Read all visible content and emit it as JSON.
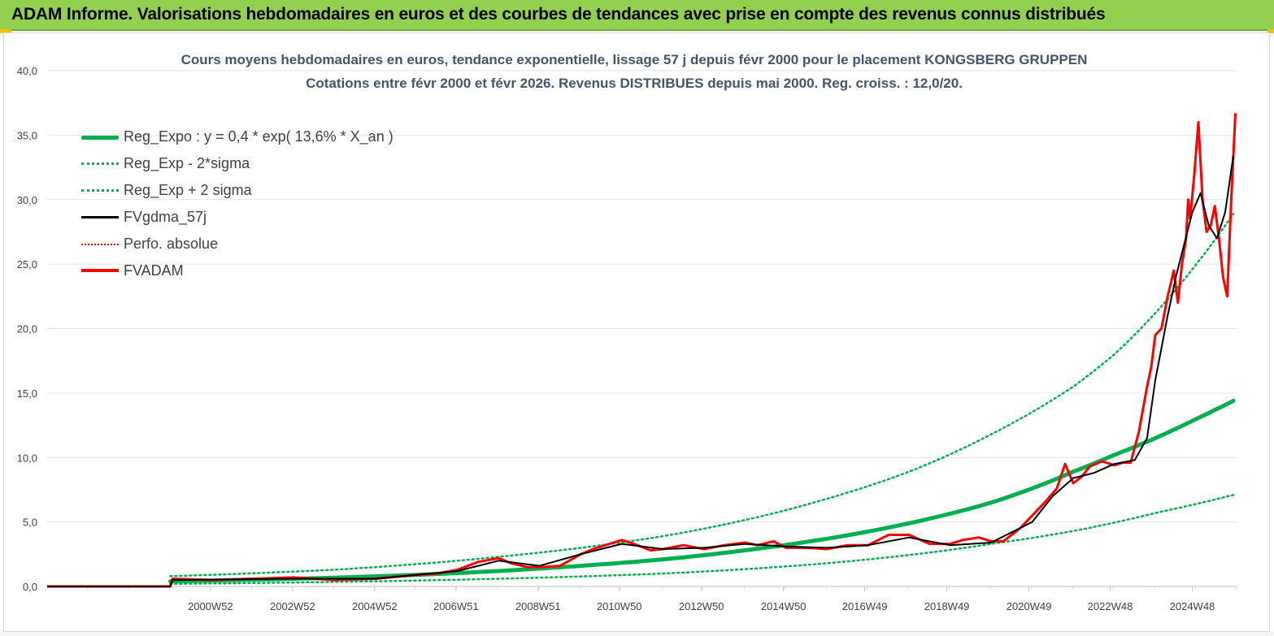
{
  "banner": {
    "title": "ADAM Informe. Valorisations hebdomadaires en euros et des courbes de tendances avec prise en compte des revenus connus distribués"
  },
  "colors": {
    "banner_bg": "#92d050",
    "reg_expo": "#00b050",
    "fvgdma": "#000000",
    "fvadam": "#ff0000",
    "title": "#44546a"
  },
  "chart_data": {
    "type": "line",
    "title_line1": "Cours moyens hebdomadaires en euros, tendance exponentielle, lissage 57 j depuis févr 2000 pour le placement KONGSBERG GRUPPEN",
    "title_line2": "Cotations entre févr 2000 et févr 2026. Revenus DISTRIBUES depuis mai 2000. Reg. croiss. : 12,0/20.",
    "ylim": [
      0,
      40
    ],
    "yticks": [
      "0,0",
      "5,0",
      "10,0",
      "15,0",
      "20,0",
      "25,0",
      "30,0",
      "35,0",
      "40,0"
    ],
    "xlim": [
      1997.0,
      2026.0
    ],
    "xticks": [
      {
        "label": "2000W52",
        "x": 2000.98
      },
      {
        "label": "2002W52",
        "x": 2002.98
      },
      {
        "label": "2004W52",
        "x": 2004.98
      },
      {
        "label": "2006W51",
        "x": 2006.96
      },
      {
        "label": "2008W51",
        "x": 2008.96
      },
      {
        "label": "2010W50",
        "x": 2010.94
      },
      {
        "label": "2012W50",
        "x": 2012.94
      },
      {
        "label": "2014W50",
        "x": 2014.94
      },
      {
        "label": "2016W49",
        "x": 2016.92
      },
      {
        "label": "2018W49",
        "x": 2018.92
      },
      {
        "label": "2020W49",
        "x": 2020.92
      },
      {
        "label": "2022W48",
        "x": 2022.9
      },
      {
        "label": "2024W48",
        "x": 2024.9
      }
    ],
    "legend": [
      {
        "label": "Reg_Expo : y = 0,4 * exp( 13,6% *  X_an )",
        "style": "thick-green"
      },
      {
        "label": "Reg_Exp - 2*sigma",
        "style": "dot-green"
      },
      {
        "label": "Reg_Exp + 2 sigma",
        "style": "dot-green"
      },
      {
        "label": "FVgdma_57j",
        "style": "black"
      },
      {
        "label": "Perfo. absolue",
        "style": "dot-red"
      },
      {
        "label": "FVADAM",
        "style": "red"
      }
    ],
    "series": [
      {
        "name": "Reg_Expo : y = 0,4 * exp( 13,6% *  X_an )",
        "x": [
          2000.0,
          2002.0,
          2004.0,
          2006.0,
          2008.0,
          2010.0,
          2012.0,
          2014.0,
          2016.0,
          2018.0,
          2020.0,
          2022.0,
          2023.0,
          2024.0,
          2025.0,
          2025.9
        ],
        "values": [
          0.4,
          0.52,
          0.68,
          0.9,
          1.2,
          1.6,
          2.1,
          2.8,
          3.7,
          4.9,
          6.5,
          8.9,
          10.2,
          11.5,
          13.0,
          14.4
        ]
      },
      {
        "name": "Reg_Exp - 2*sigma",
        "x": [
          2000.0,
          2004.0,
          2008.0,
          2012.0,
          2016.0,
          2020.0,
          2022.0,
          2024.0,
          2025.9
        ],
        "values": [
          0.2,
          0.35,
          0.6,
          1.0,
          1.8,
          3.3,
          4.3,
          5.7,
          7.1
        ]
      },
      {
        "name": "Reg_Exp + 2 sigma",
        "x": [
          2000.0,
          2004.0,
          2008.0,
          2012.0,
          2016.0,
          2018.0,
          2020.0,
          2022.0,
          2023.0,
          2024.0,
          2025.0,
          2025.9
        ],
        "values": [
          0.8,
          1.3,
          2.3,
          3.9,
          6.8,
          8.9,
          11.8,
          15.5,
          18.0,
          21.2,
          25.0,
          28.9
        ]
      },
      {
        "name": "FVgdma_57j",
        "x": [
          1997.0,
          2000.0,
          2000.05,
          2003.0,
          2005.0,
          2007.0,
          2008.0,
          2009.0,
          2010.0,
          2011.0,
          2012.0,
          2013.0,
          2014.0,
          2015.0,
          2016.0,
          2017.0,
          2018.0,
          2019.0,
          2020.0,
          2021.0,
          2021.5,
          2022.0,
          2022.5,
          2023.0,
          2023.5,
          2023.8,
          2024.0,
          2024.3,
          2024.5,
          2024.7,
          2024.9,
          2025.1,
          2025.3,
          2025.5,
          2025.7,
          2025.9
        ],
        "values": [
          0,
          0,
          0.5,
          0.6,
          0.6,
          1.2,
          2.0,
          1.6,
          2.5,
          3.3,
          2.9,
          3.0,
          3.3,
          3.1,
          3.0,
          3.2,
          3.8,
          3.2,
          3.4,
          5.0,
          7.0,
          8.4,
          8.8,
          9.5,
          9.8,
          11.5,
          16.0,
          21.0,
          24.0,
          26.5,
          29.0,
          30.5,
          28.0,
          27.0,
          29.0,
          33.4
        ]
      },
      {
        "name": "FVADAM",
        "x": [
          1997.0,
          2000.0,
          2000.05,
          2001.0,
          2002.0,
          2003.0,
          2004.0,
          2005.0,
          2006.0,
          2006.5,
          2007.0,
          2007.5,
          2008.0,
          2008.3,
          2008.7,
          2009.0,
          2009.5,
          2010.0,
          2010.3,
          2010.7,
          2011.0,
          2011.3,
          2011.7,
          2012.0,
          2012.5,
          2013.0,
          2013.5,
          2014.0,
          2014.3,
          2014.7,
          2015.0,
          2015.5,
          2016.0,
          2016.5,
          2017.0,
          2017.5,
          2018.0,
          2018.5,
          2019.0,
          2019.3,
          2019.7,
          2020.0,
          2020.3,
          2020.7,
          2021.0,
          2021.3,
          2021.6,
          2021.8,
          2022.0,
          2022.2,
          2022.4,
          2022.7,
          2023.0,
          2023.2,
          2023.4,
          2023.6,
          2023.8,
          2023.9,
          2024.0,
          2024.15,
          2024.3,
          2024.45,
          2024.55,
          2024.65,
          2024.75,
          2024.8,
          2024.85,
          2024.95,
          2025.05,
          2025.15,
          2025.25,
          2025.35,
          2025.45,
          2025.55,
          2025.65,
          2025.75,
          2025.85,
          2025.95
        ],
        "values": [
          0,
          0,
          0.6,
          0.5,
          0.6,
          0.7,
          0.5,
          0.6,
          0.9,
          1.0,
          1.3,
          1.9,
          2.2,
          1.8,
          1.5,
          1.5,
          1.6,
          2.5,
          2.9,
          3.3,
          3.6,
          3.3,
          2.8,
          2.9,
          3.2,
          2.9,
          3.2,
          3.4,
          3.2,
          3.5,
          3.0,
          3.0,
          2.9,
          3.2,
          3.2,
          4.0,
          4.0,
          3.3,
          3.3,
          3.6,
          3.8,
          3.5,
          3.5,
          4.5,
          5.5,
          6.5,
          7.6,
          9.5,
          8.0,
          8.5,
          9.3,
          9.7,
          9.4,
          9.6,
          9.6,
          12.0,
          15.5,
          17.0,
          19.5,
          20.0,
          22.5,
          24.5,
          22.0,
          25.0,
          27.0,
          30.0,
          28.5,
          32.0,
          36.0,
          30.0,
          27.5,
          28.0,
          29.5,
          27.0,
          24.0,
          22.5,
          30.0,
          36.7
        ]
      }
    ]
  }
}
